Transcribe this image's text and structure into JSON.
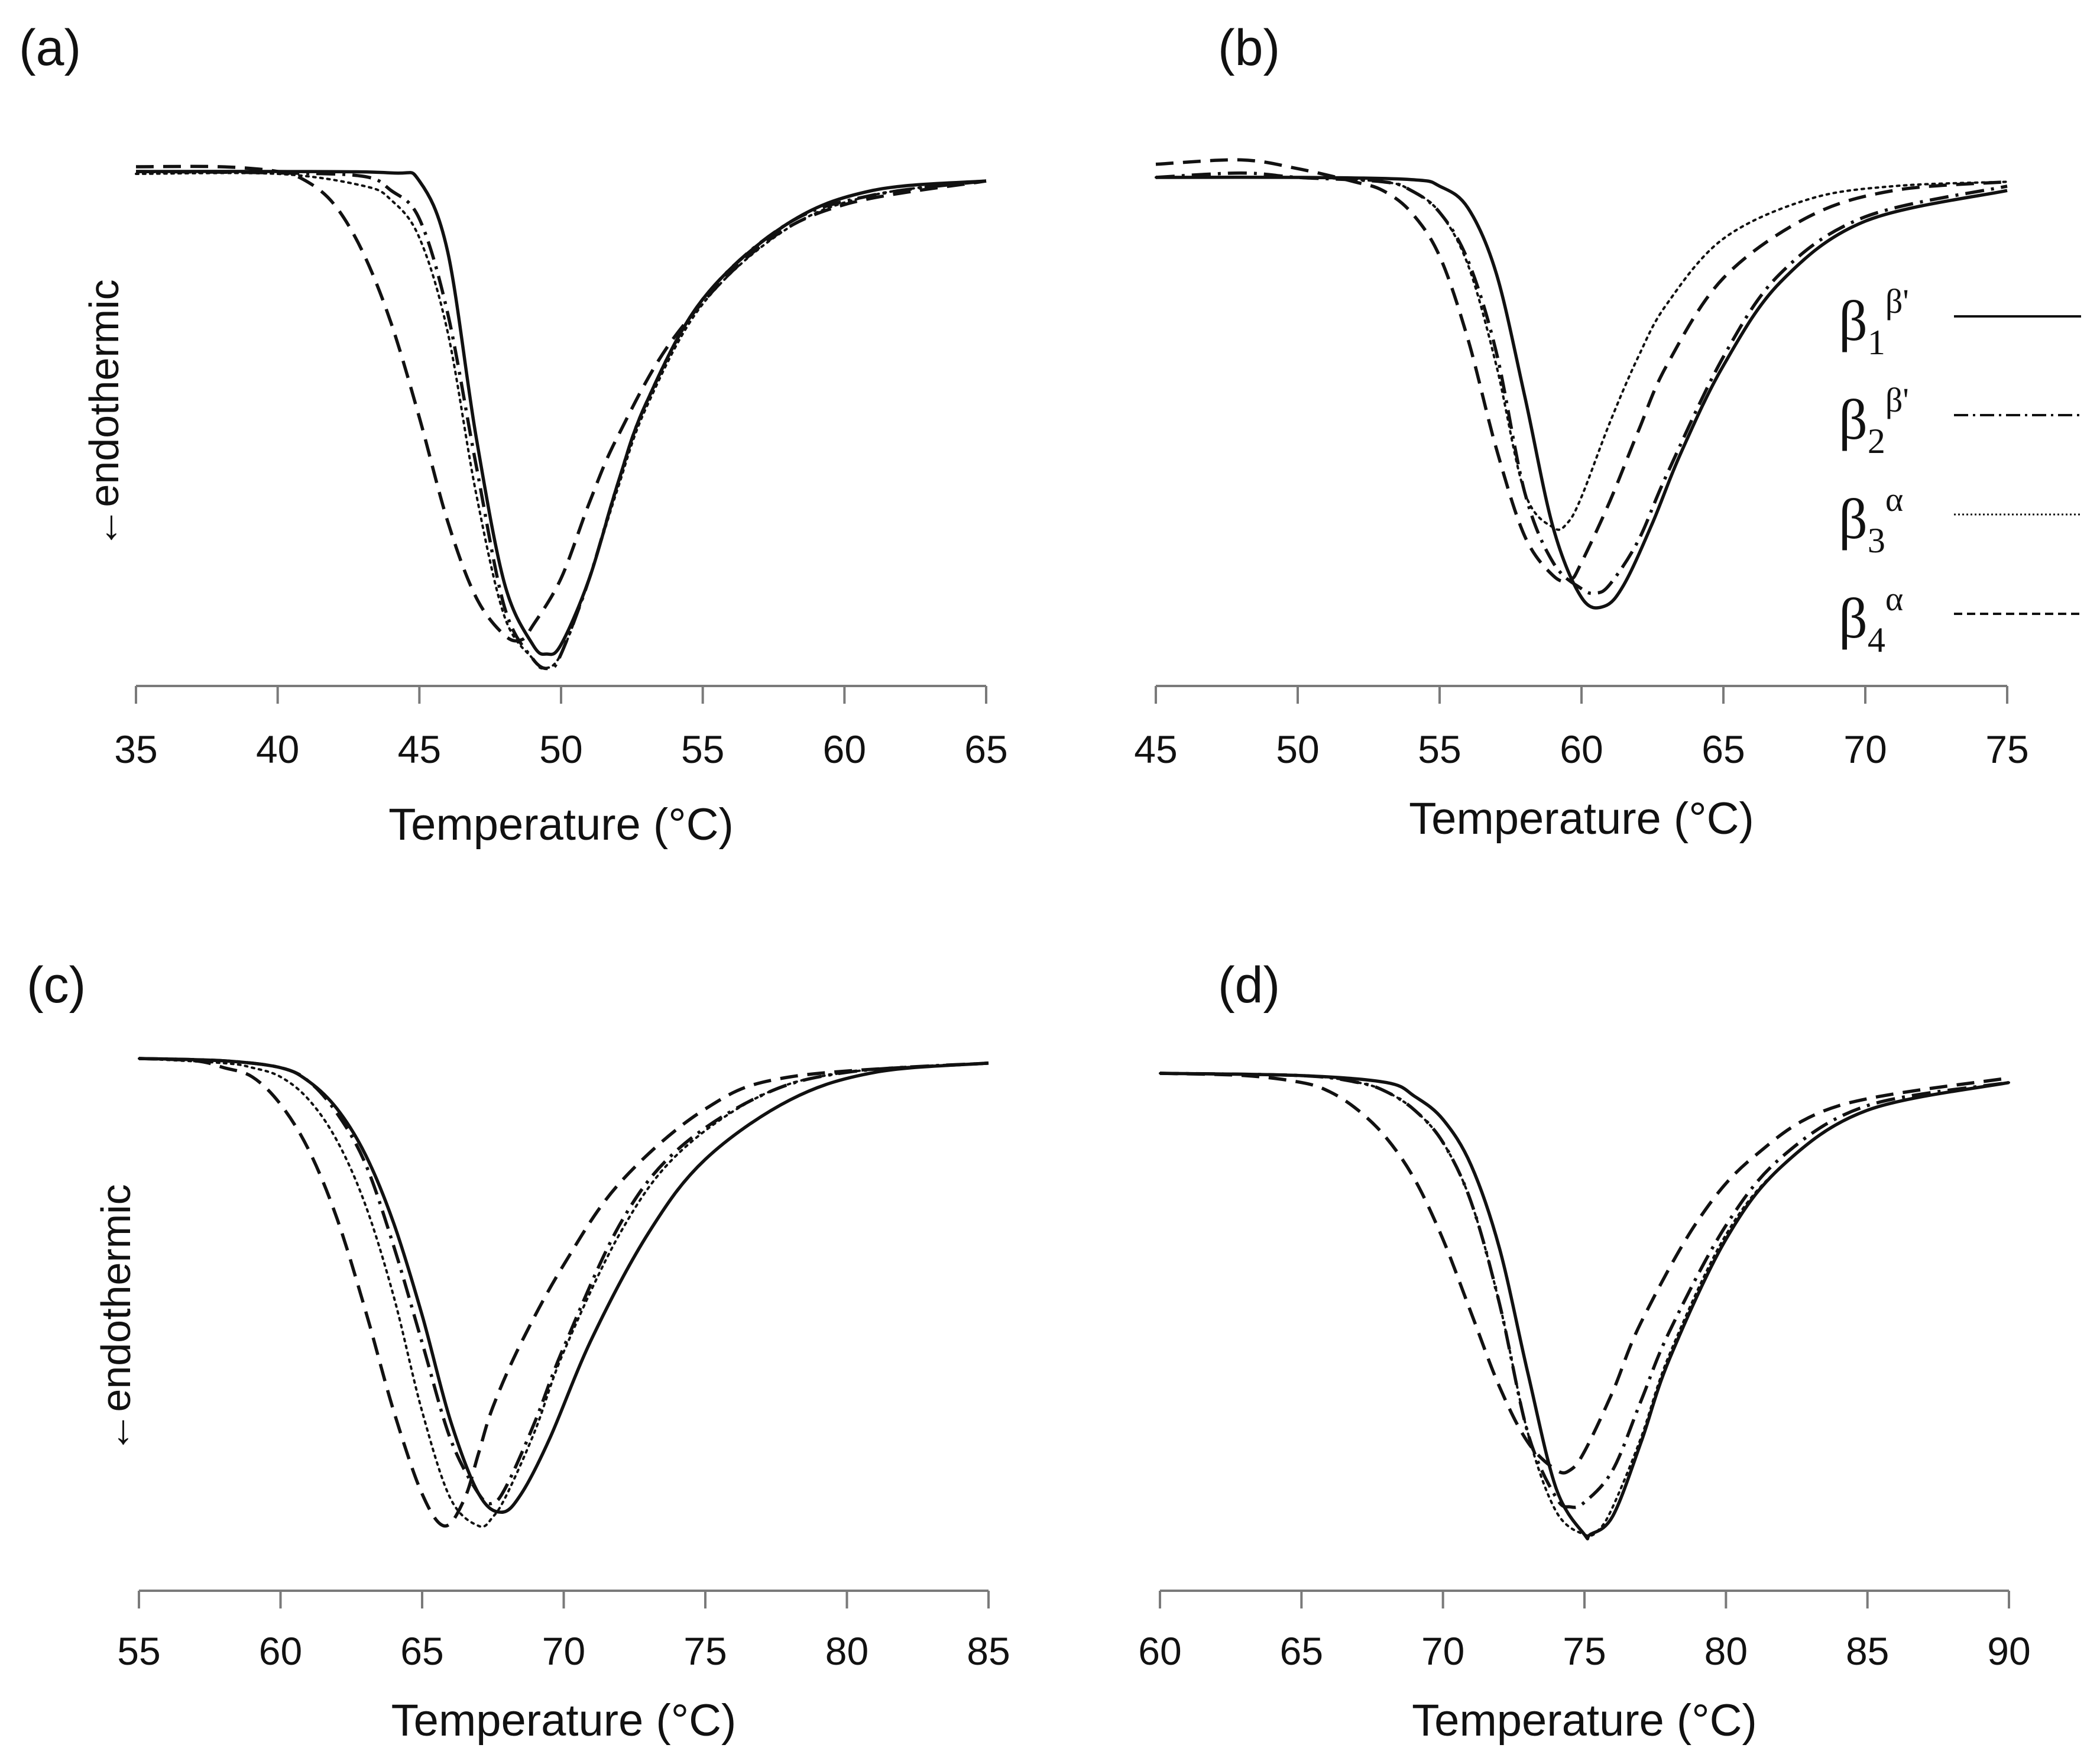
{
  "figure": {
    "legend": [
      {
        "base": "β",
        "sub": "1",
        "sup": "β'",
        "style": "solid"
      },
      {
        "base": "β",
        "sub": "2",
        "sup": "β'",
        "style": "dashdot"
      },
      {
        "base": "β",
        "sub": "3",
        "sup": "α",
        "style": "dotted"
      },
      {
        "base": "β",
        "sub": "4",
        "sup": "α",
        "style": "dashed"
      }
    ]
  },
  "chart_data": [
    {
      "type": "line",
      "panel": "(a)",
      "xlabel": "Temperature (°C)",
      "ylabel": "←endothermic",
      "xlim": [
        35,
        65
      ],
      "xticks": [
        "35",
        "40",
        "45",
        "50",
        "55",
        "60",
        "65"
      ],
      "ylim": [
        -1.1,
        0.1
      ],
      "series": [
        {
          "name": "β1β'",
          "style": "solid",
          "x": [
            35,
            40,
            44,
            45,
            46,
            47,
            48,
            49,
            49.5,
            50,
            51,
            52,
            53,
            55,
            58,
            61,
            65
          ],
          "values": [
            0,
            0,
            -0.003,
            -0.02,
            -0.17,
            -0.56,
            -0.87,
            -1.0,
            -1.02,
            -1.0,
            -0.86,
            -0.66,
            -0.49,
            -0.27,
            -0.11,
            -0.04,
            -0.02
          ]
        },
        {
          "name": "β2β'",
          "style": "dashdot",
          "x": [
            35,
            40,
            43,
            44,
            45,
            46,
            47,
            48,
            49,
            49.6,
            50,
            51,
            52,
            53,
            55,
            58,
            61,
            65
          ],
          "values": [
            0,
            -0.003,
            -0.01,
            -0.04,
            -0.1,
            -0.3,
            -0.62,
            -0.92,
            -1.03,
            -1.05,
            -1.02,
            -0.86,
            -0.66,
            -0.49,
            -0.27,
            -0.11,
            -0.05,
            -0.02
          ]
        },
        {
          "name": "β3α",
          "style": "dotted",
          "x": [
            35,
            40,
            43,
            44,
            45,
            46,
            47,
            48,
            49,
            49.4,
            50,
            51,
            52,
            53,
            55,
            58,
            61,
            65
          ],
          "values": [
            -0.005,
            -0.005,
            -0.03,
            -0.06,
            -0.14,
            -0.34,
            -0.68,
            -0.94,
            -1.03,
            -1.05,
            -1.02,
            -0.86,
            -0.67,
            -0.5,
            -0.28,
            -0.12,
            -0.05,
            -0.02
          ]
        },
        {
          "name": "β4α",
          "style": "dashed",
          "x": [
            35,
            38,
            40,
            41,
            42,
            43,
            44,
            45,
            46,
            47,
            48,
            48.6,
            49,
            50,
            51,
            52,
            54,
            57,
            60,
            65
          ],
          "values": [
            0.01,
            0.01,
            0.0,
            -0.02,
            -0.07,
            -0.17,
            -0.32,
            -0.52,
            -0.74,
            -0.9,
            -0.98,
            -0.99,
            -0.96,
            -0.86,
            -0.7,
            -0.56,
            -0.35,
            -0.16,
            -0.07,
            -0.02
          ]
        }
      ]
    },
    {
      "type": "line",
      "panel": "(b)",
      "xlabel": "Temperature (°C)",
      "ylabel": "",
      "xlim": [
        45,
        75
      ],
      "xticks": [
        "45",
        "50",
        "55",
        "60",
        "65",
        "70",
        "75"
      ],
      "ylim": [
        -1.1,
        0.1
      ],
      "series": [
        {
          "name": "β1β'",
          "style": "solid",
          "x": [
            45,
            50,
            54,
            55,
            56,
            57,
            58,
            59,
            60,
            60.8,
            61.5,
            62.5,
            63.5,
            65,
            67,
            70,
            75
          ],
          "values": [
            0,
            0,
            -0.005,
            -0.02,
            -0.07,
            -0.22,
            -0.5,
            -0.8,
            -0.96,
            -0.98,
            -0.93,
            -0.79,
            -0.63,
            -0.43,
            -0.24,
            -0.1,
            -0.03
          ]
        },
        {
          "name": "β2β'",
          "style": "dashdot",
          "x": [
            45,
            48,
            50,
            53,
            54,
            55,
            56,
            57,
            58,
            59,
            60,
            60.5,
            61,
            62,
            63,
            65,
            67,
            70,
            75
          ],
          "values": [
            0,
            0.01,
            0.0,
            -0.01,
            -0.03,
            -0.08,
            -0.19,
            -0.4,
            -0.72,
            -0.88,
            -0.94,
            -0.95,
            -0.93,
            -0.83,
            -0.68,
            -0.41,
            -0.22,
            -0.09,
            -0.02
          ]
        },
        {
          "name": "β3α",
          "style": "dotted",
          "x": [
            45,
            50,
            53,
            54,
            55,
            56,
            57,
            58,
            59,
            59.5,
            60,
            61,
            62,
            63,
            65,
            68,
            71,
            75
          ],
          "values": [
            0,
            0,
            -0.01,
            -0.03,
            -0.08,
            -0.2,
            -0.43,
            -0.72,
            -0.8,
            -0.79,
            -0.73,
            -0.56,
            -0.41,
            -0.29,
            -0.14,
            -0.05,
            -0.02,
            -0.01
          ]
        },
        {
          "name": "β4α",
          "style": "dashed",
          "x": [
            45,
            48,
            50,
            52,
            53,
            54,
            55,
            56,
            57,
            58,
            59,
            59.6,
            60,
            61,
            62,
            63,
            65,
            68,
            71,
            75
          ],
          "values": [
            0.03,
            0.04,
            0.02,
            -0.01,
            -0.03,
            -0.08,
            -0.18,
            -0.37,
            -0.62,
            -0.82,
            -0.91,
            -0.92,
            -0.88,
            -0.74,
            -0.58,
            -0.43,
            -0.23,
            -0.09,
            -0.03,
            -0.01
          ]
        }
      ]
    },
    {
      "type": "line",
      "panel": "(c)",
      "xlabel": "Temperature (°C)",
      "ylabel": "←endothermic",
      "xlim": [
        55,
        85
      ],
      "xticks": [
        "55",
        "60",
        "65",
        "70",
        "75",
        "80",
        "85"
      ],
      "ylim": [
        -1.1,
        0.1
      ],
      "series": [
        {
          "name": "β1β'",
          "style": "solid",
          "x": [
            55,
            58,
            60,
            61,
            62,
            63,
            64,
            65,
            66,
            67,
            67.8,
            68.5,
            69.5,
            71,
            73,
            75,
            78,
            81,
            85
          ],
          "values": [
            0,
            -0.005,
            -0.02,
            -0.05,
            -0.11,
            -0.21,
            -0.36,
            -0.56,
            -0.79,
            -0.95,
            -0.99,
            -0.95,
            -0.83,
            -0.61,
            -0.38,
            -0.22,
            -0.09,
            -0.03,
            -0.01
          ]
        },
        {
          "name": "β2β'",
          "style": "dashdot",
          "x": [
            55,
            58,
            60,
            61,
            62,
            63,
            64,
            65,
            66,
            67,
            67.5,
            68,
            69,
            70,
            72,
            74,
            77,
            80,
            85
          ],
          "values": [
            0,
            -0.005,
            -0.02,
            -0.05,
            -0.12,
            -0.23,
            -0.41,
            -0.62,
            -0.83,
            -0.95,
            -0.97,
            -0.93,
            -0.79,
            -0.63,
            -0.36,
            -0.2,
            -0.08,
            -0.03,
            -0.01
          ]
        },
        {
          "name": "β3α",
          "style": "dotted",
          "x": [
            55,
            58,
            59,
            60,
            61,
            62,
            63,
            64,
            65,
            66,
            67,
            67.5,
            68,
            69,
            70,
            72,
            74,
            77,
            80,
            85
          ],
          "values": [
            0,
            -0.01,
            -0.02,
            -0.04,
            -0.09,
            -0.18,
            -0.32,
            -0.52,
            -0.77,
            -0.96,
            -1.02,
            -1.0,
            -0.95,
            -0.81,
            -0.64,
            -0.38,
            -0.21,
            -0.08,
            -0.03,
            -0.01
          ]
        },
        {
          "name": "β4α",
          "style": "dashed",
          "x": [
            55,
            57,
            58,
            59,
            60,
            61,
            62,
            63,
            64,
            65,
            65.8,
            66.5,
            67,
            67.5,
            68.5,
            70,
            72,
            75,
            78,
            85
          ],
          "values": [
            0,
            -0.005,
            -0.02,
            -0.04,
            -0.1,
            -0.2,
            -0.35,
            -0.55,
            -0.77,
            -0.95,
            -1.02,
            -0.96,
            -0.86,
            -0.76,
            -0.62,
            -0.45,
            -0.27,
            -0.11,
            -0.04,
            -0.01
          ]
        }
      ]
    },
    {
      "type": "line",
      "panel": "(d)",
      "xlabel": "Temperature (°C)",
      "ylabel": "",
      "xlim": [
        60,
        90
      ],
      "xticks": [
        "60",
        "65",
        "70",
        "75",
        "80",
        "85",
        "90"
      ],
      "ylim": [
        -1.1,
        0.1
      ],
      "series": [
        {
          "name": "β1β'",
          "style": "solid",
          "x": [
            60,
            65,
            68,
            69,
            70,
            71,
            72,
            73,
            74,
            75,
            75.2,
            76,
            77,
            78,
            80,
            82,
            85,
            90
          ],
          "values": [
            0,
            -0.005,
            -0.02,
            -0.05,
            -0.1,
            -0.2,
            -0.38,
            -0.65,
            -0.9,
            -1.0,
            -1.0,
            -0.96,
            -0.8,
            -0.62,
            -0.36,
            -0.2,
            -0.08,
            -0.02
          ]
        },
        {
          "name": "β2β'",
          "style": "dashdot",
          "x": [
            60,
            65,
            67,
            68,
            69,
            70,
            71,
            72,
            73,
            74,
            74.5,
            75,
            76,
            77,
            78,
            80,
            82,
            85,
            90
          ],
          "values": [
            0,
            -0.005,
            -0.02,
            -0.04,
            -0.08,
            -0.15,
            -0.28,
            -0.5,
            -0.78,
            -0.92,
            -0.94,
            -0.93,
            -0.86,
            -0.71,
            -0.56,
            -0.33,
            -0.18,
            -0.07,
            -0.02
          ]
        },
        {
          "name": "β3α",
          "style": "dotted",
          "x": [
            60,
            65,
            67,
            68,
            69,
            70,
            71,
            72,
            73,
            74,
            75,
            75.5,
            76,
            77,
            78,
            80,
            82,
            85,
            90
          ],
          "values": [
            0,
            -0.005,
            -0.02,
            -0.04,
            -0.08,
            -0.15,
            -0.28,
            -0.5,
            -0.78,
            -0.95,
            -1.0,
            -0.99,
            -0.94,
            -0.79,
            -0.61,
            -0.35,
            -0.2,
            -0.08,
            -0.02
          ]
        },
        {
          "name": "β4α",
          "style": "dashed",
          "x": [
            60,
            63,
            65,
            66,
            67,
            68,
            69,
            70,
            71,
            72,
            73,
            74,
            74.5,
            75,
            76,
            77,
            79,
            81,
            84,
            90
          ],
          "values": [
            0,
            -0.005,
            -0.02,
            -0.04,
            -0.08,
            -0.14,
            -0.23,
            -0.36,
            -0.52,
            -0.68,
            -0.8,
            -0.86,
            -0.86,
            -0.82,
            -0.69,
            -0.54,
            -0.32,
            -0.18,
            -0.07,
            -0.01
          ]
        }
      ]
    }
  ]
}
